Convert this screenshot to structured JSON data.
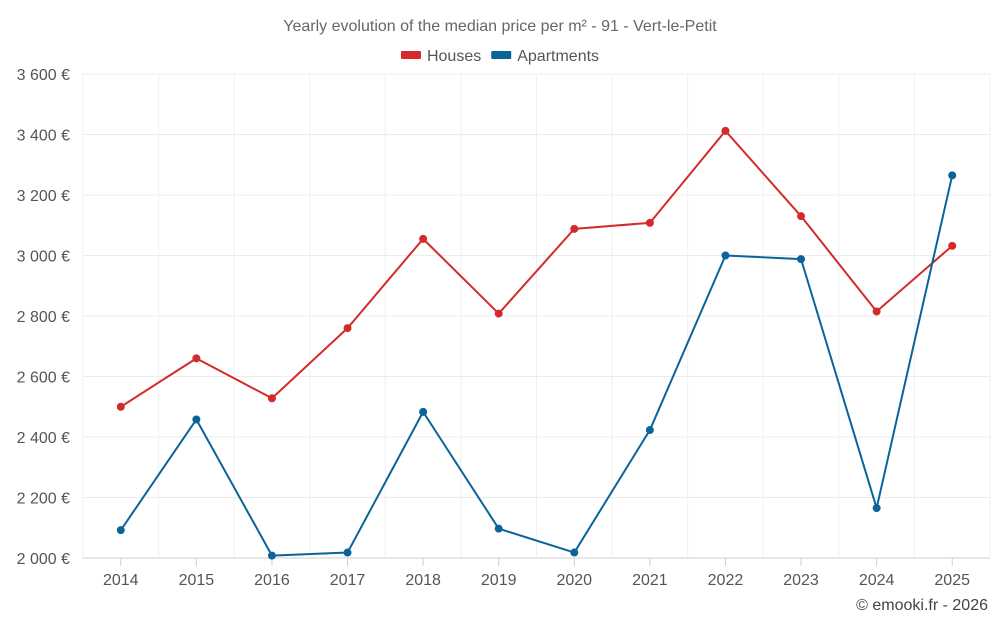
{
  "chart_data": {
    "type": "line",
    "title": "Yearly evolution of the median price per m² - 91 - Vert-le-Petit",
    "categories": [
      "2014",
      "2015",
      "2016",
      "2017",
      "2018",
      "2019",
      "2020",
      "2021",
      "2022",
      "2023",
      "2024",
      "2025"
    ],
    "series": [
      {
        "name": "Houses",
        "color": "#d42a2a",
        "values": [
          2500,
          2660,
          2528,
          2760,
          3055,
          2808,
          3088,
          3108,
          3412,
          3130,
          2815,
          3032
        ]
      },
      {
        "name": "Apartments",
        "color": "#0a6499",
        "values": [
          2092,
          2458,
          2008,
          2018,
          2483,
          2097,
          2018,
          2423,
          3000,
          2988,
          2165,
          3265
        ]
      }
    ],
    "ylim": [
      2000,
      3600
    ],
    "yticks": [
      2000,
      2200,
      2400,
      2600,
      2800,
      3000,
      3200,
      3400,
      3600
    ],
    "ytick_labels": [
      "2 000 €",
      "2 200 €",
      "2 400 €",
      "2 600 €",
      "2 800 €",
      "3 000 €",
      "3 200 €",
      "3 400 €",
      "3 600 €"
    ],
    "xlabel": "",
    "ylabel": "",
    "grid": true,
    "legend_position": "top-center"
  },
  "credit": "© emooki.fr - 2026"
}
